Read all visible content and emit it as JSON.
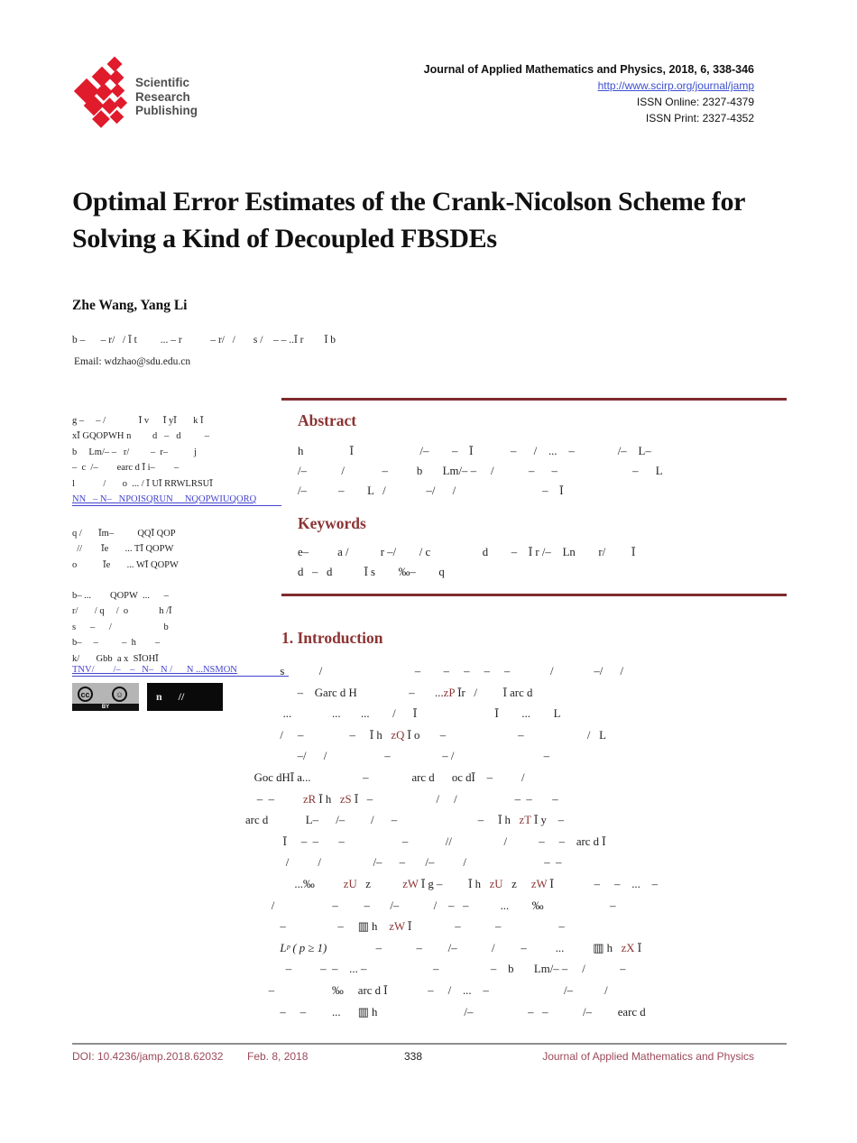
{
  "header": {
    "journal_line": "Journal of Applied Mathematics and Physics, 2018, 6, 338-346",
    "url": "http://www.scirp.org/journal/jamp",
    "issn_online": "ISSN Online: 2327-4379",
    "issn_print": "ISSN Print: 2327-4352",
    "logo": {
      "line1": "Scientific",
      "line2": "Research",
      "line3": "Publishing",
      "diamond_color": "#e01b2c"
    }
  },
  "title": "Optimal Error Estimates of the Crank-Nicolson Scheme for Solving a Kind of Decoupled FBSDEs",
  "authors": "Zhe Wang, Yang Li",
  "affiliation": "b –      – r/   / Ī t         ... – r           – r/   /       s /    – – ..Ī r        Ī b",
  "email": "Email: wdzhao@sdu.edu.cn",
  "sidebar": {
    "cite_lines": [
      "g –     – /              Ī v      Ī yĪ       k Ī",
      "xĪ GQOPWH n         d   –   d          –",
      "b     Lm/– –   r/         –  r–           j",
      "–  c  /–        earc d Ī i–        –",
      "l            /       o  ... / Ī UĪ RRWLRSUĪ"
    ],
    "cite_link": "NN   – N–   NPOISQRUN     NQOPWIUQORQ",
    "dates_lines": [
      "q /       Īm–          QQĪ QOP",
      "  //        Īe       ... TĪ QOPW",
      "o           Īe       ... WĪ QOPW"
    ],
    "copyright_lines": [
      "b– ...        QOPW  ...      –",
      "r/       / q     /  o             h /Ī",
      "s      –      /                      b",
      "b–     –          –  h        –",
      "k/       Gbb  a x  SĪOHĪ"
    ],
    "license_link": "TNV/        /–    –   N–   N /      N ...NSMON",
    "cc_badge": {
      "cc_label": "cc",
      "by_label": "BY"
    },
    "open_access_text": "n      //"
  },
  "main": {
    "abstract": {
      "heading": "Abstract",
      "lines": [
        "h                Ī                       /–        –    Ī             –      /    ...    –               /–    L–",
        "/–            /             –          b       Lm/– –     /            –      –                          –      L",
        "/–           –        L   /              –/      /                              –    Ī"
      ]
    },
    "keywords": {
      "heading": "Keywords",
      "lines": [
        "e–          a /           r –/        / c                  d        –    Ī r /–    Ln        r/         Ī",
        "d   –   d           Ī s        ‰–        q"
      ]
    },
    "introduction": {
      "heading": "1. Introduction",
      "lines": [
        [
          {
            "t": "            s            /                                –        –     –     –     –              /              –/      /"
          }
        ],
        [
          {
            "t": "                  –    Garc d H                  –       ..."
          },
          {
            "t": "zP",
            "c": true
          },
          {
            "t": " Īr   /         Ī arc d"
          }
        ],
        [
          {
            "t": "             ...              ...       ...        /      Ī                           Ī        ...        L"
          }
        ],
        [
          {
            "t": "            /     –                –     Ī h   "
          },
          {
            "t": "zQ",
            "c": true
          },
          {
            "t": " Ī o       –                         –                      /   L"
          }
        ],
        [
          {
            "t": "                  –/      /                    –                  – /                               –"
          }
        ],
        [
          {
            "t": "   Goc dHĪ a...                  –               arc d      oc dĪ    –          /"
          }
        ],
        [
          {
            "t": "    –  –          "
          },
          {
            "t": "zR",
            "c": true
          },
          {
            "t": " Ī h   "
          },
          {
            "t": "zS",
            "c": true
          },
          {
            "t": " Ī   –                      /     /                    –  –       –"
          }
        ],
        [
          {
            "t": "arc d             L–      /–         /      –                            –     Ī h   "
          },
          {
            "t": "zT",
            "c": true
          },
          {
            "t": " Ī y    –"
          }
        ],
        [
          {
            "t": "             Ī     –  –       –                    –             //                  /           –     –    arc d Ī"
          }
        ],
        [
          {
            "t": "              /          /                  /–      –       /–          /                           –  –"
          }
        ],
        [
          {
            "t": "                 ...‰          "
          },
          {
            "t": "zU",
            "c": true
          },
          {
            "t": "   z           "
          },
          {
            "t": "zW",
            "c": true
          },
          {
            "t": " Ī g –         Ī h   "
          },
          {
            "t": "zU",
            "c": true
          },
          {
            "t": "   z     "
          },
          {
            "t": "zW",
            "c": true
          },
          {
            "t": " Ī              –     –    ...    –"
          }
        ],
        [
          {
            "t": "         /                    –         –       /–            /    –   –           ...        ‰                       –"
          }
        ],
        [
          {
            "t": "            –                  –     ▥ h    "
          },
          {
            "t": "zW",
            "c": true
          },
          {
            "t": " Ī               –            –                    –"
          }
        ],
        [
          {
            "t": "            "
          },
          {
            "t": "Lᵖ ( p ≥ 1)",
            "i": true
          },
          {
            "t": "                 –            –         /–            /         –          ...          ▥ h   "
          },
          {
            "t": "zX",
            "c": true
          },
          {
            "t": " Ī"
          }
        ],
        [
          {
            "t": "              –          –  –    ... –                       –                  –    b       Lm/– –     /            –"
          }
        ],
        [
          {
            "t": "        –                    ‰     arc d Ī              –     /    ...    –                          /–           /"
          }
        ],
        [
          {
            "t": "            –     –         ...      ▥ h                              /–                   –   –            /–         earc d"
          }
        ]
      ]
    }
  },
  "footer": {
    "doi": "DOI: 10.4236/jamp.2018.62032",
    "date": "Feb. 8, 2018",
    "page": "338",
    "journal": "Journal of Applied Mathematics and Physics"
  },
  "colors": {
    "heading_maroon": "#8c3333",
    "rule_maroon": "#7e2b2e",
    "footer_maroon": "#9c4a5a",
    "link_blue": "#4343cf",
    "logo_red": "#e01b2c"
  }
}
